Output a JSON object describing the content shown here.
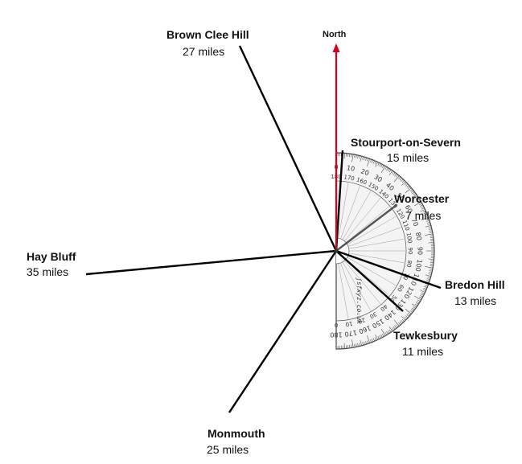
{
  "north_label": "North",
  "protractor_brand": "jsfxyz.co.uk",
  "protractor_scale_outer": [
    "0",
    "10",
    "20",
    "30",
    "40",
    "50",
    "60",
    "70",
    "80",
    "90",
    "100",
    "110",
    "120",
    "130",
    "140",
    "150",
    "160",
    "170",
    "180"
  ],
  "protractor_scale_inner": [
    "180",
    "170",
    "160",
    "150",
    "140",
    "130",
    "120",
    "110",
    "100",
    "90",
    "80",
    "70",
    "60",
    "50",
    "40",
    "30",
    "20",
    "10",
    "0"
  ],
  "colors": {
    "north_arrow": "#d6001c",
    "bearing_line": "#000000",
    "protractor": "#555555"
  },
  "icons": {
    "north_arrow": "arrow-up-icon",
    "protractor": "protractor-icon"
  },
  "destinations": [
    {
      "name": "Brown Clee Hill",
      "distance": "27 miles"
    },
    {
      "name": "Stourport-on-Severn",
      "distance": "15 miles"
    },
    {
      "name": "Worcester",
      "distance": "7 miles"
    },
    {
      "name": "Bredon Hill",
      "distance": "13 miles"
    },
    {
      "name": "Tewkesbury",
      "distance": "11 miles"
    },
    {
      "name": "Monmouth",
      "distance": "25 miles"
    },
    {
      "name": "Hay Bluff",
      "distance": "35 miles"
    }
  ]
}
